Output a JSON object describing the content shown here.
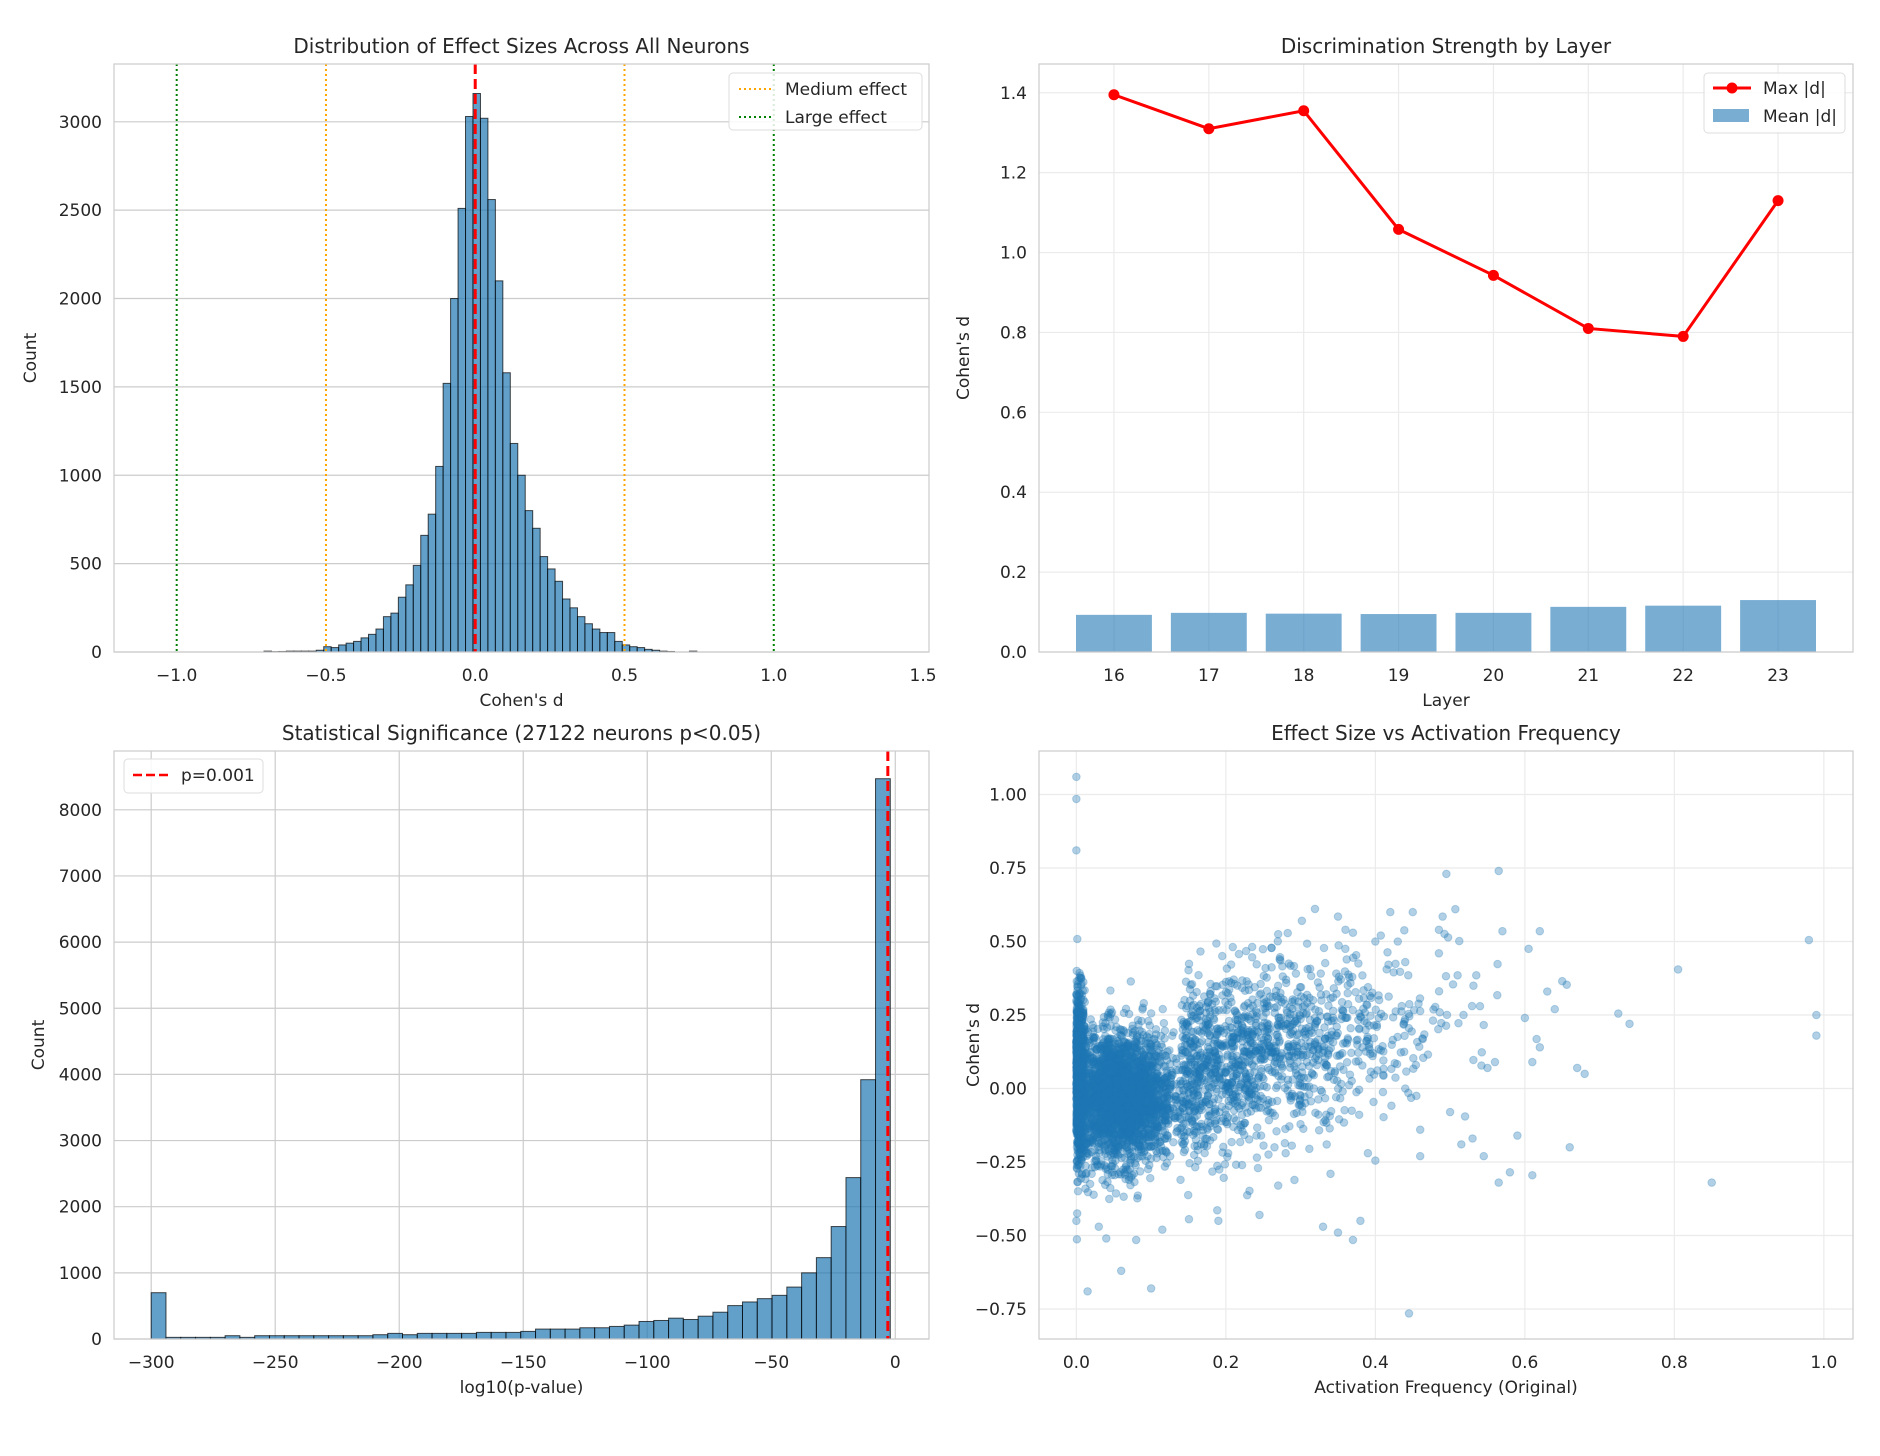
{
  "chart_data": [
    {
      "id": "effect-hist",
      "type": "bar",
      "title": "Distribution of Effect Sizes Across All Neurons",
      "xlabel": "Cohen's d",
      "ylabel": "Count",
      "xlim": [
        -1.21,
        1.52
      ],
      "ylim": [
        0,
        3327
      ],
      "xticks": [
        -1.0,
        -0.5,
        0.0,
        0.5,
        1.0,
        1.5
      ],
      "xtick_labels": [
        "−1.0",
        "−0.5",
        "0.0",
        "0.5",
        "1.0",
        "1.5"
      ],
      "yticks": [
        0,
        500,
        1000,
        1500,
        2000,
        2500,
        3000
      ],
      "ytick_labels": [
        "0",
        "500",
        "1000",
        "1500",
        "2000",
        "2500",
        "3000"
      ],
      "grid": "horizontal",
      "bin_width": 0.025,
      "bin_start": -0.7075,
      "values": [
        5,
        2,
        3,
        5,
        5,
        5,
        5,
        10,
        30,
        25,
        40,
        50,
        60,
        80,
        100,
        130,
        200,
        220,
        310,
        380,
        490,
        660,
        780,
        1050,
        1520,
        2000,
        2510,
        3030,
        3160,
        3020,
        2560,
        2100,
        1580,
        1180,
        1000,
        800,
        700,
        540,
        470,
        400,
        300,
        250,
        200,
        160,
        130,
        110,
        110,
        60,
        40,
        30,
        25,
        15,
        10,
        5,
        3,
        0,
        0,
        5
      ],
      "reference_lines": [
        {
          "x": -0.5,
          "color": "#ffa500",
          "style": "dotted",
          "legend": "Medium effect"
        },
        {
          "x": 0.5,
          "color": "#ffa500",
          "style": "dotted"
        },
        {
          "x": -1.0,
          "color": "#008000",
          "style": "dotted",
          "legend": "Large effect"
        },
        {
          "x": 1.0,
          "color": "#008000",
          "style": "dotted"
        },
        {
          "x": 0.0,
          "color": "#ff0000",
          "style": "dashed"
        }
      ],
      "legend": {
        "placement": "top-right",
        "entries": [
          "Medium effect",
          "Large effect"
        ]
      }
    },
    {
      "id": "layer-strength",
      "type": "bar+line",
      "title": "Discrimination Strength by Layer",
      "xlabel": "Layer",
      "ylabel": "Cohen's d",
      "xlim": [
        15.21,
        23.79
      ],
      "ylim": [
        0,
        1.472
      ],
      "categories": [
        16,
        17,
        18,
        19,
        20,
        21,
        22,
        23
      ],
      "xtick_labels": [
        "16",
        "17",
        "18",
        "19",
        "20",
        "21",
        "22",
        "23"
      ],
      "yticks": [
        0,
        0.2,
        0.4,
        0.6,
        0.8,
        1.0,
        1.2,
        1.4
      ],
      "ytick_labels": [
        "0.0",
        "0.2",
        "0.4",
        "0.6",
        "0.8",
        "1.0",
        "1.2",
        "1.4"
      ],
      "grid": "both-light",
      "series": [
        {
          "name": "Max |d|",
          "type": "line",
          "color": "#ff0000",
          "values": [
            1.395,
            1.31,
            1.355,
            1.058,
            0.943,
            0.81,
            0.79,
            1.13
          ]
        },
        {
          "name": "Mean |d|",
          "type": "bar",
          "color": "#1f77b4",
          "values": [
            0.093,
            0.098,
            0.096,
            0.095,
            0.098,
            0.113,
            0.116,
            0.13
          ]
        }
      ],
      "legend": {
        "placement": "top-right",
        "entries": [
          "Max |d|",
          "Mean |d|"
        ]
      }
    },
    {
      "id": "pvalue-hist",
      "type": "bar",
      "title": "Statistical Significance (27122 neurons p<0.05)",
      "xlabel": "log10(p-value)",
      "ylabel": "Count",
      "xlim": [
        -315,
        13.6
      ],
      "ylim": [
        0,
        8889
      ],
      "xticks": [
        -300,
        -250,
        -200,
        -150,
        -100,
        -50,
        0
      ],
      "xtick_labels": [
        "−300",
        "−250",
        "−200",
        "−150",
        "−100",
        "−50",
        "0"
      ],
      "yticks": [
        0,
        1000,
        2000,
        3000,
        4000,
        5000,
        6000,
        7000,
        8000
      ],
      "ytick_labels": [
        "0",
        "1000",
        "2000",
        "3000",
        "4000",
        "5000",
        "6000",
        "7000",
        "8000"
      ],
      "grid": "both",
      "bin_start": -300,
      "bin_width": 5.96,
      "values": [
        700,
        25,
        25,
        25,
        25,
        50,
        25,
        50,
        50,
        50,
        50,
        50,
        50,
        50,
        50,
        65,
        85,
        65,
        85,
        85,
        85,
        85,
        100,
        100,
        100,
        115,
        150,
        150,
        150,
        170,
        170,
        190,
        210,
        265,
        280,
        315,
        295,
        345,
        405,
        505,
        560,
        610,
        660,
        785,
        1000,
        1230,
        1700,
        2440,
        3920,
        8470
      ],
      "reference_lines": [
        {
          "x": -3,
          "color": "#ff0000",
          "style": "dashed",
          "legend": "p=0.001"
        }
      ],
      "legend": {
        "placement": "top-left",
        "entries": [
          "p=0.001"
        ]
      }
    },
    {
      "id": "effect-vs-freq",
      "type": "scatter",
      "title": "Effect Size vs Activation Frequency",
      "xlabel": "Activation Frequency (Original)",
      "ylabel": "Cohen's d",
      "xlim": [
        -0.05,
        1.039
      ],
      "ylim": [
        -0.852,
        1.148
      ],
      "xticks": [
        0,
        0.2,
        0.4,
        0.6,
        0.8,
        1.0
      ],
      "xtick_labels": [
        "0.0",
        "0.2",
        "0.4",
        "0.6",
        "0.8",
        "1.0"
      ],
      "yticks": [
        -0.75,
        -0.5,
        -0.25,
        0,
        0.25,
        0.5,
        0.75,
        1.0
      ],
      "ytick_labels": [
        "−0.75",
        "−0.50",
        "−0.25",
        "0.00",
        "0.25",
        "0.50",
        "0.75",
        "1.00"
      ],
      "grid": "both-light",
      "color": "#1f77b4",
      "alpha": 0.35,
      "points": [
        [
          0,
          1.06
        ],
        [
          0,
          0.985
        ],
        [
          0,
          0.81
        ],
        [
          0.495,
          0.73
        ],
        [
          0.565,
          0.74
        ],
        [
          0.42,
          0.6
        ],
        [
          0.45,
          0.6
        ],
        [
          0.507,
          0.61
        ],
        [
          0.35,
          0.585
        ],
        [
          0.49,
          0.585
        ],
        [
          0.57,
          0.535
        ],
        [
          0.62,
          0.535
        ],
        [
          0.98,
          0.505
        ],
        [
          0.805,
          0.405
        ],
        [
          0.99,
          0.25
        ],
        [
          0.99,
          0.18
        ],
        [
          0.725,
          0.255
        ],
        [
          0.74,
          0.22
        ],
        [
          0.605,
          0.475
        ],
        [
          0.65,
          0.365
        ],
        [
          0.63,
          0.33
        ],
        [
          0.64,
          0.27
        ],
        [
          0.6,
          0.24
        ],
        [
          0.62,
          0.14
        ],
        [
          0.61,
          0.09
        ],
        [
          0.67,
          0.07
        ],
        [
          0.68,
          0.05
        ],
        [
          0.56,
          0.09
        ],
        [
          0.55,
          0.07
        ],
        [
          0.535,
          0.385
        ],
        [
          0.54,
          0.28
        ],
        [
          0.51,
          0.385
        ],
        [
          0.485,
          0.46
        ],
        [
          0.485,
          0.54
        ],
        [
          0.59,
          -0.16
        ],
        [
          0.66,
          -0.2
        ],
        [
          0.85,
          -0.32
        ],
        [
          0.565,
          -0.32
        ],
        [
          0.61,
          -0.295
        ],
        [
          0.58,
          -0.285
        ],
        [
          0.545,
          -0.23
        ],
        [
          0.515,
          -0.19
        ],
        [
          0.445,
          -0.765
        ],
        [
          0.1,
          -0.68
        ],
        [
          0.015,
          -0.69
        ],
        [
          0.06,
          -0.62
        ],
        [
          0.08,
          -0.515
        ],
        [
          0.37,
          -0.515
        ],
        [
          0.35,
          -0.49
        ],
        [
          0.38,
          -0.45
        ],
        [
          0.33,
          -0.47
        ],
        [
          0.34,
          -0.29
        ],
        [
          0.0,
          -0.45
        ],
        [
          0.03,
          -0.47
        ],
        [
          0.04,
          -0.51
        ],
        [
          0.115,
          -0.48
        ],
        [
          0.19,
          -0.45
        ],
        [
          0.245,
          -0.43
        ],
        [
          0.28,
          -0.22
        ],
        [
          0.27,
          -0.33
        ],
        [
          0.4,
          -0.245
        ],
        [
          0.39,
          -0.22
        ],
        [
          0.46,
          -0.23
        ],
        [
          0.46,
          -0.14
        ],
        [
          0.44,
          0.0
        ],
        [
          0.5,
          -0.08
        ],
        [
          0.52,
          -0.095
        ],
        [
          0.53,
          -0.17
        ],
        [
          0.27,
          0.525
        ],
        [
          0.4,
          0.5
        ],
        [
          0.43,
          0.5
        ],
        [
          0.44,
          0.43
        ],
        [
          0.36,
          0.54
        ],
        [
          0.37,
          0.53
        ]
      ],
      "cloud_components": [
        {
          "n": 900,
          "x_mean": 0.003,
          "x_sd": 0.004,
          "y_mean": 0.05,
          "y_sd": 0.14,
          "y_slope": 0
        },
        {
          "n": 2600,
          "x_mean": 0.06,
          "x_sd": 0.035,
          "y_mean": -0.03,
          "y_sd": 0.11,
          "y_slope": 0
        },
        {
          "n": 1300,
          "x_mean": 0.2,
          "x_sd": 0.09,
          "y_mean": -0.02,
          "y_sd": 0.15,
          "y_slope": 0.55
        }
      ]
    }
  ]
}
